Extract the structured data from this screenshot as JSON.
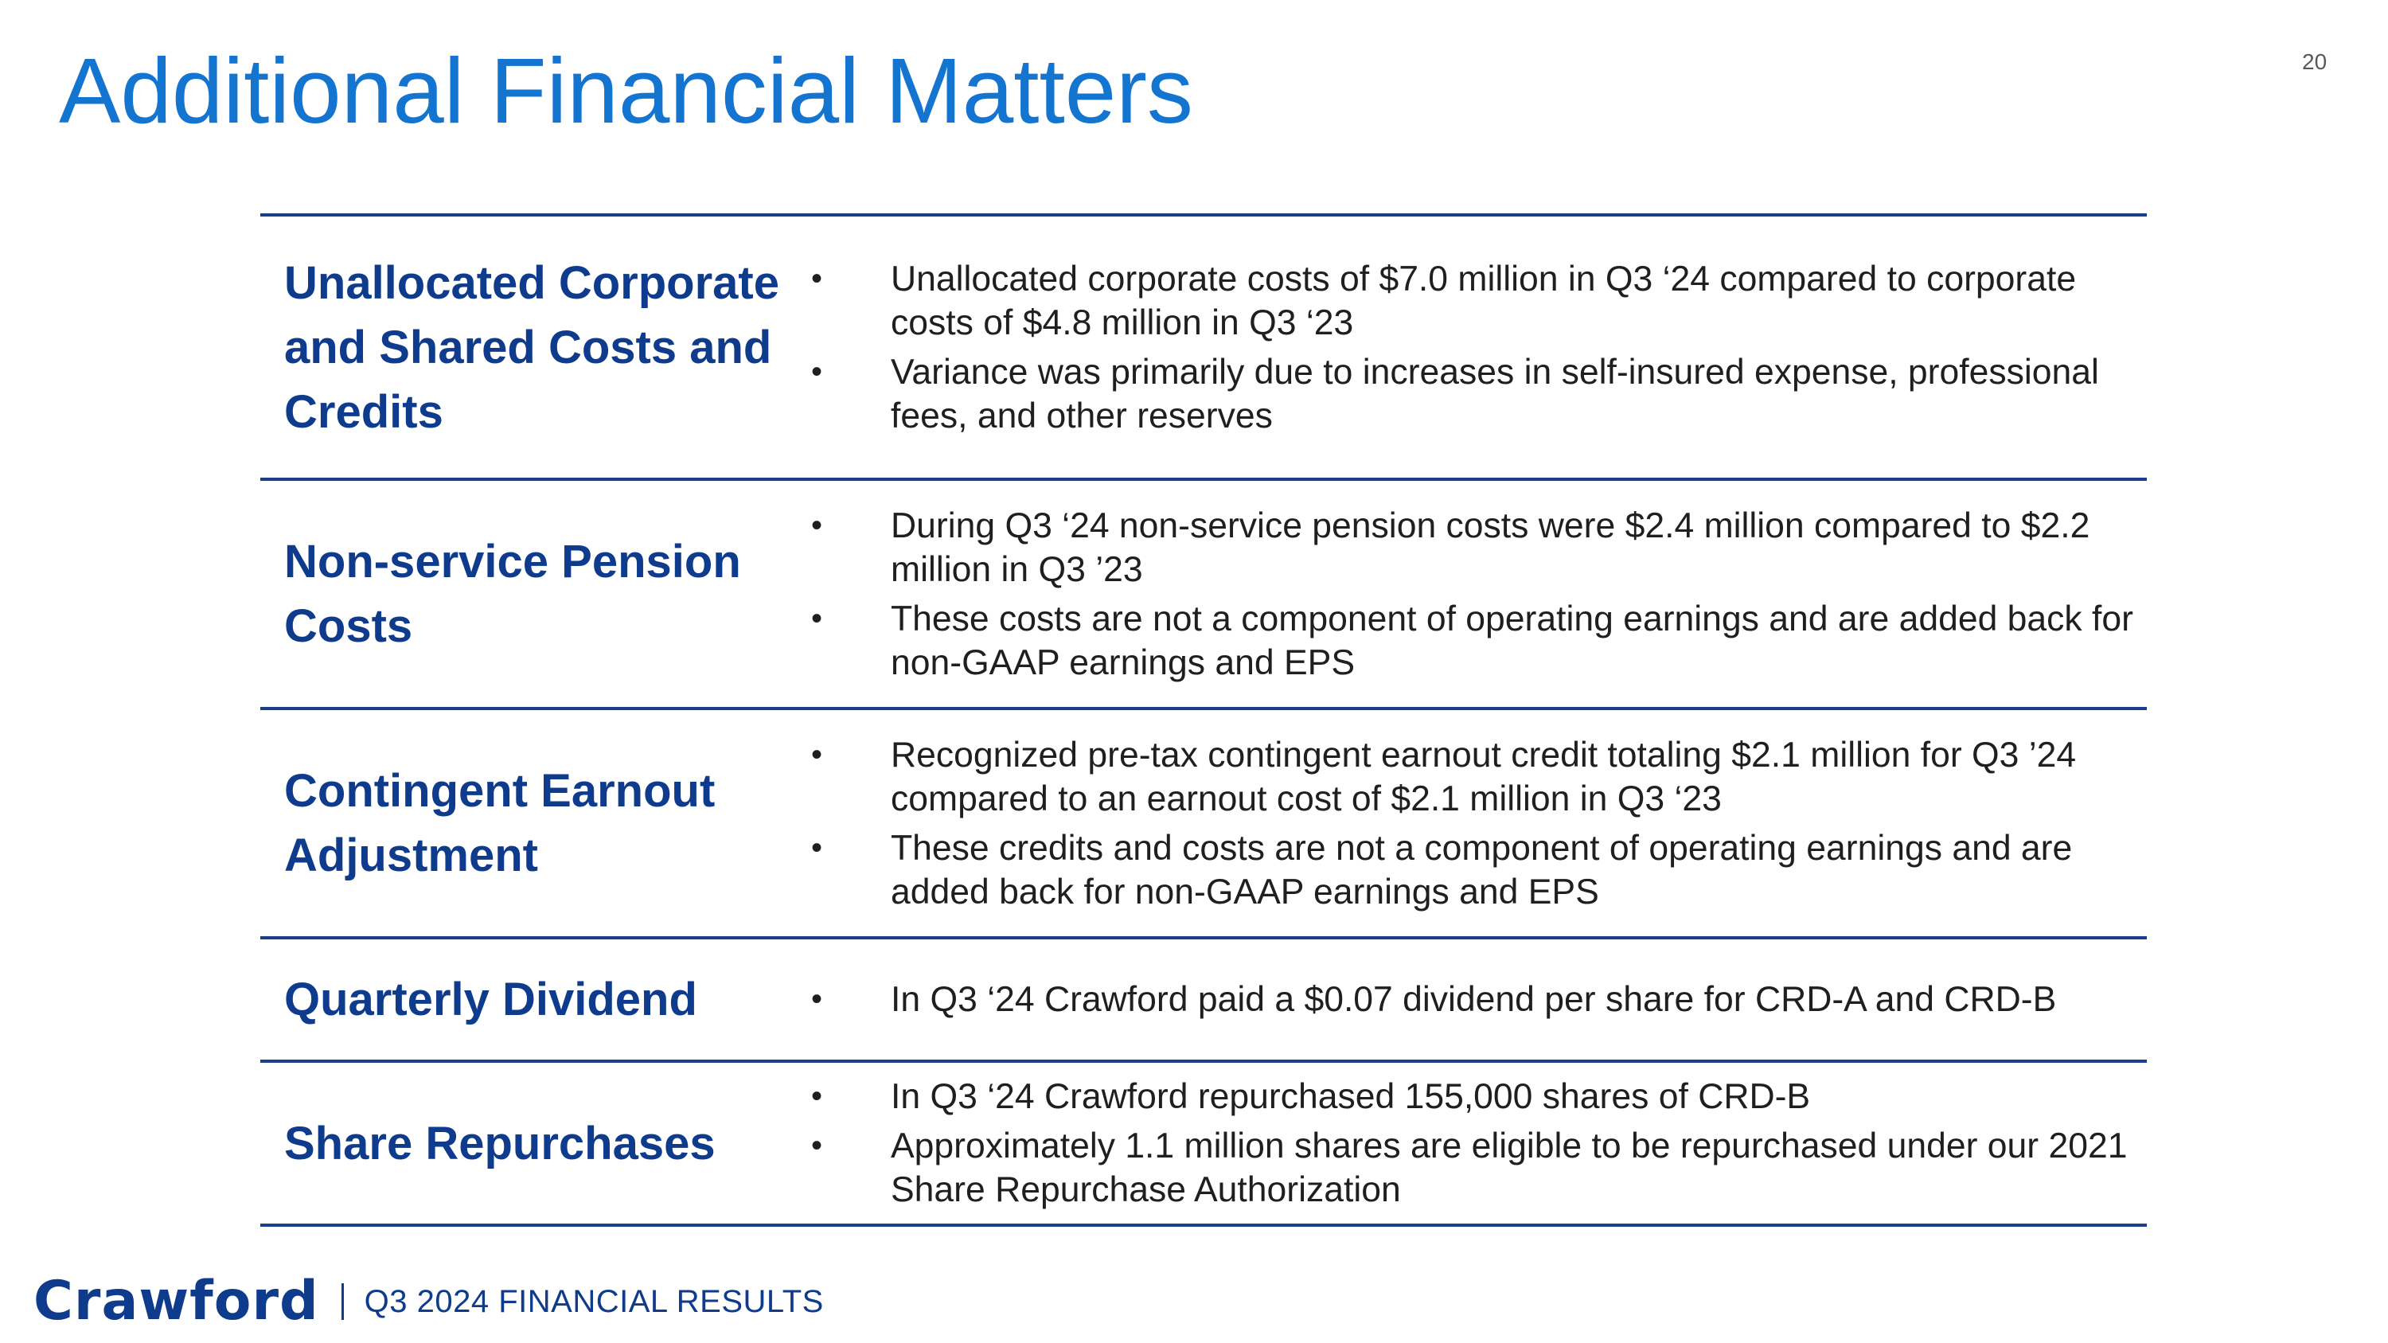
{
  "slide": {
    "title": "Additional Financial Matters",
    "page_number": "20"
  },
  "matters": [
    {
      "heading": "Unallocated Corporate and Shared Costs and Credits",
      "bullets": [
        "Unallocated corporate costs of $7.0 million in Q3 ‘24 compared to corporate costs of $4.8 million in Q3 ‘23",
        "Variance was primarily due to increases in self-insured expense, professional fees, and other reserves"
      ]
    },
    {
      "heading": "Non-service Pension Costs",
      "bullets": [
        "During Q3 ‘24 non-service pension costs were $2.4 million compared to $2.2 million in Q3 ’23",
        "These costs are not a component of operating earnings and are added back for non-GAAP earnings and EPS"
      ]
    },
    {
      "heading": "Contingent Earnout Adjustment",
      "bullets": [
        "Recognized pre-tax contingent earnout credit totaling $2.1 million for Q3 ’24 compared to an earnout cost of $2.1 million in Q3 ‘23",
        "These credits and costs are not a component of operating earnings and are added back for non-GAAP earnings and EPS"
      ]
    },
    {
      "heading": "Quarterly Dividend",
      "bullets": [
        "In Q3 ‘24 Crawford paid a $0.07 dividend per share for CRD-A and CRD-B"
      ]
    },
    {
      "heading": "Share Repurchases",
      "bullets": [
        "In Q3 ‘24 Crawford repurchased 155,000 shares of CRD-B",
        "Approximately 1.1 million shares are eligible to be repurchased under our 2021 Share Repurchase Authorization"
      ]
    }
  ],
  "footer": {
    "logo_text": "Crawford",
    "text": "Q3 2024 FINANCIAL RESULTS"
  },
  "bullet_glyph": "•",
  "colors": {
    "title": "#1475d0",
    "heading": "#0f3b8c",
    "rule": "#1a3f8a",
    "body_text": "#1f1f1f"
  }
}
